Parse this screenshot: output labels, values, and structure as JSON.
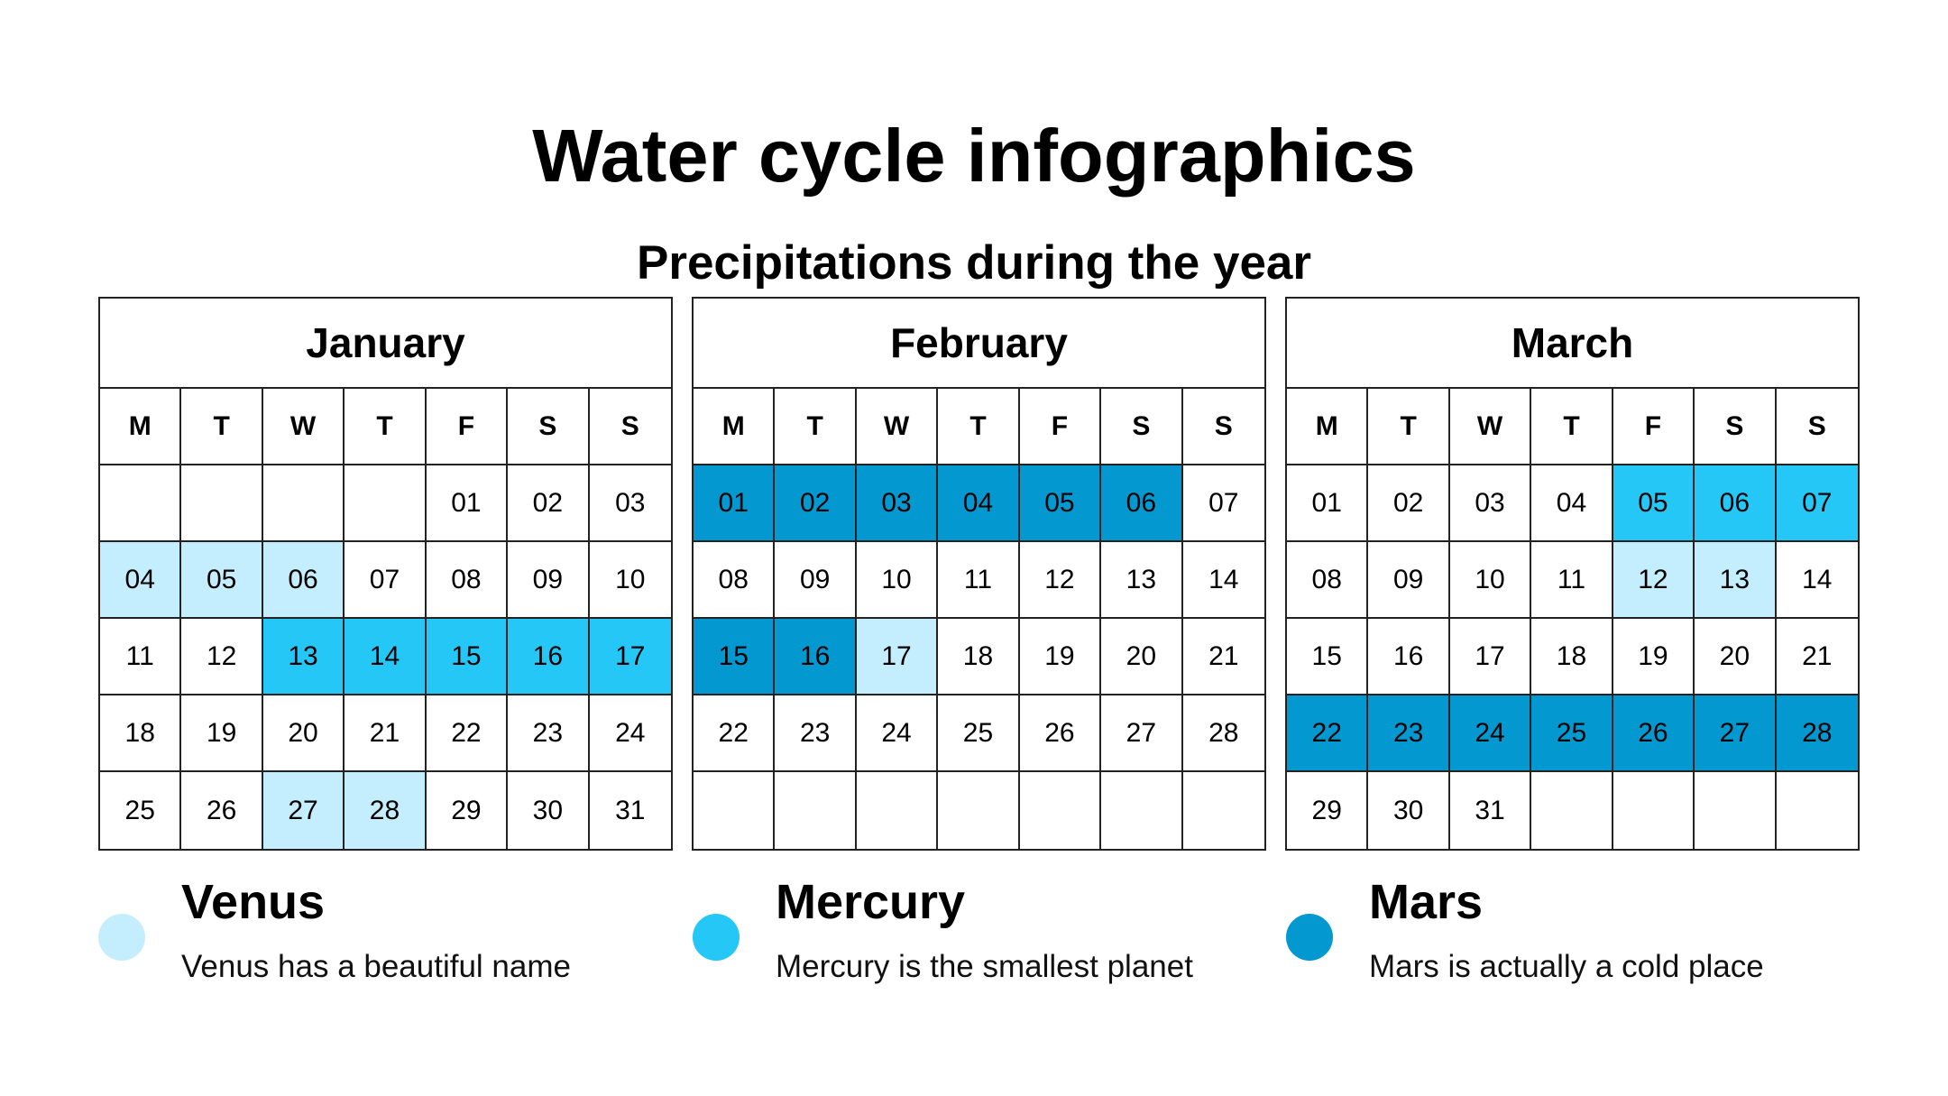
{
  "title": "Water cycle infographics",
  "subtitle": "Precipitations during the year",
  "colors": {
    "venus": "#c4eefd",
    "mercury": "#25c7f7",
    "mars": "#0399d0",
    "empty": "#ffffff"
  },
  "weekdays": [
    "M",
    "T",
    "W",
    "T",
    "F",
    "S",
    "S"
  ],
  "months": [
    {
      "name": "January",
      "days": [
        "",
        "",
        "",
        "",
        "01",
        "02",
        "03",
        "04",
        "05",
        "06",
        "07",
        "08",
        "09",
        "10",
        "11",
        "12",
        "13",
        "14",
        "15",
        "16",
        "17",
        "18",
        "19",
        "20",
        "21",
        "22",
        "23",
        "24",
        "25",
        "26",
        "27",
        "28",
        "29",
        "30",
        "31"
      ],
      "highlights": [
        "",
        "",
        "",
        "",
        "",
        "",
        "",
        "venus",
        "venus",
        "venus",
        "",
        "",
        "",
        "",
        "",
        "",
        "mercury",
        "mercury",
        "mercury",
        "mercury",
        "mercury",
        "",
        "",
        "",
        "",
        "",
        "",
        "",
        "",
        "",
        "venus",
        "venus",
        "",
        "",
        ""
      ]
    },
    {
      "name": "February",
      "days": [
        "01",
        "02",
        "03",
        "04",
        "05",
        "06",
        "07",
        "08",
        "09",
        "10",
        "11",
        "12",
        "13",
        "14",
        "15",
        "16",
        "17",
        "18",
        "19",
        "20",
        "21",
        "22",
        "23",
        "24",
        "25",
        "26",
        "27",
        "28",
        "",
        "",
        "",
        "",
        "",
        "",
        ""
      ],
      "highlights": [
        "mars",
        "mars",
        "mars",
        "mars",
        "mars",
        "mars",
        "",
        "",
        "",
        "",
        "",
        "",
        "",
        "",
        "mars",
        "mars",
        "venus",
        "",
        "",
        "",
        "",
        "",
        "",
        "",
        "",
        "",
        "",
        "",
        "",
        "",
        "",
        "",
        "",
        "",
        ""
      ]
    },
    {
      "name": "March",
      "days": [
        "01",
        "02",
        "03",
        "04",
        "05",
        "06",
        "07",
        "08",
        "09",
        "10",
        "11",
        "12",
        "13",
        "14",
        "15",
        "16",
        "17",
        "18",
        "19",
        "20",
        "21",
        "22",
        "23",
        "24",
        "25",
        "26",
        "27",
        "28",
        "29",
        "30",
        "31",
        "",
        "",
        "",
        ""
      ],
      "highlights": [
        "",
        "",
        "",
        "",
        "mercury",
        "mercury",
        "mercury",
        "",
        "",
        "",
        "",
        "venus",
        "venus",
        "",
        "",
        "",
        "",
        "",
        "",
        "",
        "",
        "mars",
        "mars",
        "mars",
        "mars",
        "mars",
        "mars",
        "mars",
        "",
        "",
        "",
        "",
        "",
        "",
        ""
      ]
    }
  ],
  "legend": [
    {
      "key": "venus",
      "title": "Venus",
      "description": "Venus has a beautiful name"
    },
    {
      "key": "mercury",
      "title": "Mercury",
      "description": "Mercury is the smallest planet"
    },
    {
      "key": "mars",
      "title": "Mars",
      "description": "Mars is actually a cold place"
    }
  ]
}
